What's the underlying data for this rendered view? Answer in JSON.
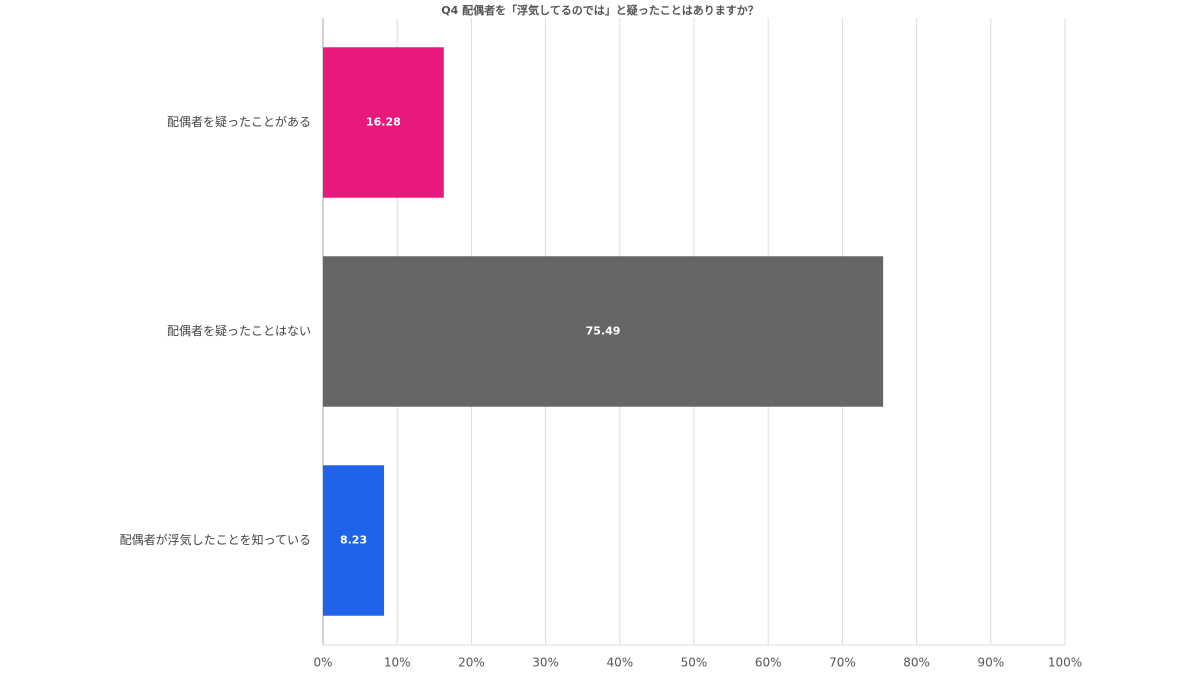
{
  "chart_data": {
    "type": "hbar",
    "title": "Q4 配偶者を「浮気してるのでは」と疑ったことはありますか？",
    "categories": [
      "配偶者を疑ったことがある",
      "配偶者を疑ったことはない",
      "配偶者が浮気したことを知っている"
    ],
    "values": [
      16.28,
      75.49,
      8.23
    ],
    "colors": [
      "#e8197d",
      "#666666",
      "#1f64e8"
    ],
    "xlim": [
      0,
      100
    ],
    "xticks": [
      {
        "value": 0,
        "label": "0%"
      },
      {
        "value": 10,
        "label": "10%"
      },
      {
        "value": 20,
        "label": "20%"
      },
      {
        "value": 30,
        "label": "30%"
      },
      {
        "value": 40,
        "label": "40%"
      },
      {
        "value": 50,
        "label": "50%"
      },
      {
        "value": 60,
        "label": "60%"
      },
      {
        "value": 70,
        "label": "70%"
      },
      {
        "value": 80,
        "label": "80%"
      },
      {
        "value": 90,
        "label": "90%"
      },
      {
        "value": 100,
        "label": "100%"
      }
    ],
    "grid": true
  }
}
